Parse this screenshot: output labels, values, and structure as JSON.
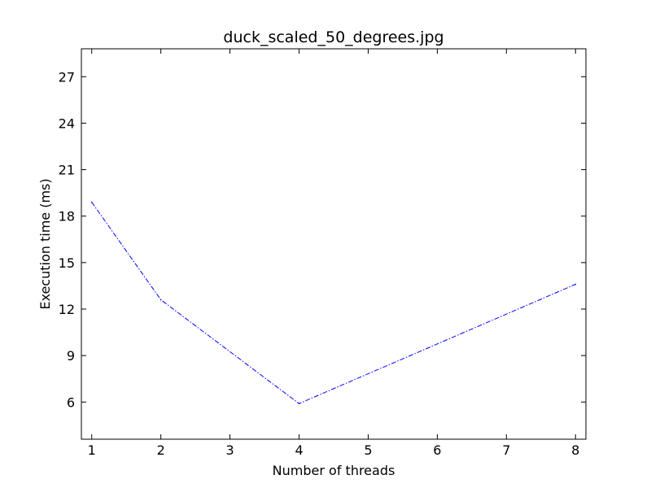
{
  "chart_data": {
    "type": "line",
    "title": "duck_scaled_50_degrees.jpg",
    "xlabel": "Number of threads",
    "ylabel": "Execution time (ms)",
    "xlim": [
      0.85,
      8.15
    ],
    "ylim": [
      3.6,
      28.8
    ],
    "xticks": [
      1,
      2,
      3,
      4,
      5,
      6,
      7,
      8
    ],
    "yticks": [
      6,
      9,
      12,
      15,
      18,
      21,
      24,
      27
    ],
    "grid": false,
    "legend": "none",
    "series": [
      {
        "x": [
          1,
          2,
          4,
          8
        ],
        "y": [
          18.9,
          12.6,
          5.9,
          13.6
        ],
        "color": "#0000ff",
        "line_style": "dash-dot"
      }
    ]
  }
}
